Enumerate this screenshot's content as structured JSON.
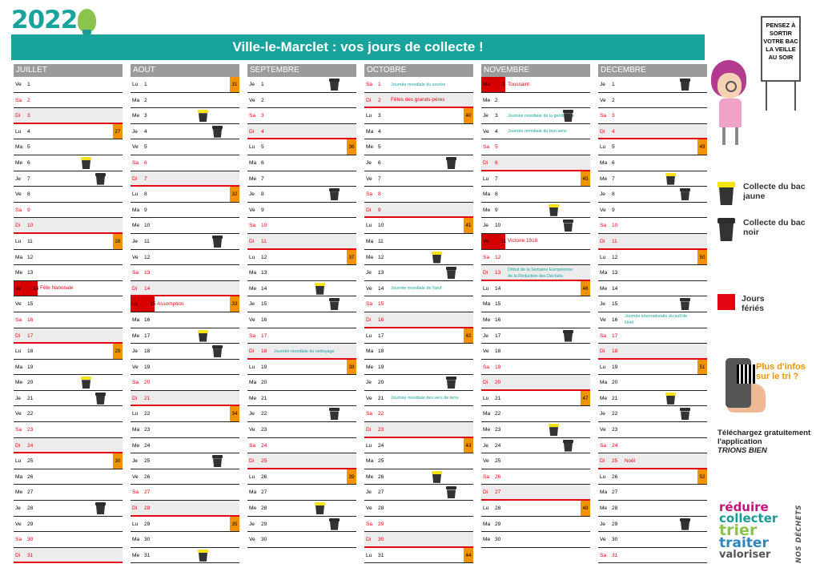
{
  "year_label": "2022",
  "title": "Ville-le-Marclet : vos jours de collecte !",
  "board_text": "PENSEZ À SORTIR VOTRE BAC LA VEILLE AU SOIR",
  "legend": {
    "yellow": "Collecte du bac jaune",
    "black": "Collecte du bac noir",
    "holiday": "Jours fériés",
    "bin_colors": {
      "yellow": "#f4e212",
      "black": "#2c2c2c",
      "holiday": "#e30613"
    }
  },
  "promo": {
    "more_info": "Plus d'infos sur le tri ?",
    "download": "Téléchargez gratuitement l'application",
    "app_name": "TRIONS BIEN"
  },
  "slogan": {
    "l1": "réduire",
    "l2": "collecter",
    "l3": "trier",
    "l4": "traiter",
    "l5": "valoriser",
    "vertical": "NOS DÉCHETS"
  },
  "months": [
    {
      "name": "JUILLET",
      "days": [
        {
          "d": 1,
          "w": "Ve"
        },
        {
          "d": 2,
          "w": "Sa"
        },
        {
          "d": 3,
          "w": "Di"
        },
        {
          "d": 4,
          "w": "Lu",
          "wk": "27"
        },
        {
          "d": 5,
          "w": "Ma"
        },
        {
          "d": 6,
          "w": "Me",
          "bin": "y"
        },
        {
          "d": 7,
          "w": "Je",
          "bin": "b"
        },
        {
          "d": 8,
          "w": "Ve"
        },
        {
          "d": 9,
          "w": "Sa"
        },
        {
          "d": 10,
          "w": "Di"
        },
        {
          "d": 11,
          "w": "Lu",
          "wk": "28"
        },
        {
          "d": 12,
          "w": "Ma"
        },
        {
          "d": 13,
          "w": "Me"
        },
        {
          "d": 14,
          "w": "Je",
          "hol": true,
          "ev": "Fête Nationale"
        },
        {
          "d": 15,
          "w": "Ve"
        },
        {
          "d": 16,
          "w": "Sa"
        },
        {
          "d": 17,
          "w": "Di"
        },
        {
          "d": 18,
          "w": "Lu",
          "wk": "29"
        },
        {
          "d": 19,
          "w": "Ma"
        },
        {
          "d": 20,
          "w": "Me",
          "bin": "y"
        },
        {
          "d": 21,
          "w": "Je",
          "bin": "b"
        },
        {
          "d": 22,
          "w": "Ve"
        },
        {
          "d": 23,
          "w": "Sa"
        },
        {
          "d": 24,
          "w": "Di"
        },
        {
          "d": 25,
          "w": "Lu",
          "wk": "30"
        },
        {
          "d": 26,
          "w": "Ma"
        },
        {
          "d": 27,
          "w": "Me"
        },
        {
          "d": 28,
          "w": "Je",
          "bin": "b"
        },
        {
          "d": 29,
          "w": "Ve"
        },
        {
          "d": 30,
          "w": "Sa"
        },
        {
          "d": 31,
          "w": "Di"
        }
      ]
    },
    {
      "name": "AOUT",
      "days": [
        {
          "d": 1,
          "w": "Lu",
          "wk": "31"
        },
        {
          "d": 2,
          "w": "Ma"
        },
        {
          "d": 3,
          "w": "Me",
          "bin": "y"
        },
        {
          "d": 4,
          "w": "Je",
          "bin": "b"
        },
        {
          "d": 5,
          "w": "Ve"
        },
        {
          "d": 6,
          "w": "Sa"
        },
        {
          "d": 7,
          "w": "Di"
        },
        {
          "d": 8,
          "w": "Lu",
          "wk": "32"
        },
        {
          "d": 9,
          "w": "Ma"
        },
        {
          "d": 10,
          "w": "Me"
        },
        {
          "d": 11,
          "w": "Je",
          "bin": "b"
        },
        {
          "d": 12,
          "w": "Ve"
        },
        {
          "d": 13,
          "w": "Sa"
        },
        {
          "d": 14,
          "w": "Di"
        },
        {
          "d": 15,
          "w": "Lu",
          "hol": true,
          "ev": "Assomption",
          "wk": "33"
        },
        {
          "d": 16,
          "w": "Ma"
        },
        {
          "d": 17,
          "w": "Me",
          "bin": "y"
        },
        {
          "d": 18,
          "w": "Je",
          "bin": "b"
        },
        {
          "d": 19,
          "w": "Ve"
        },
        {
          "d": 20,
          "w": "Sa"
        },
        {
          "d": 21,
          "w": "Di"
        },
        {
          "d": 22,
          "w": "Lu",
          "wk": "34"
        },
        {
          "d": 23,
          "w": "Ma"
        },
        {
          "d": 24,
          "w": "Me"
        },
        {
          "d": 25,
          "w": "Je",
          "bin": "b"
        },
        {
          "d": 26,
          "w": "Ve"
        },
        {
          "d": 27,
          "w": "Sa"
        },
        {
          "d": 28,
          "w": "Di"
        },
        {
          "d": 29,
          "w": "Lu",
          "wk": "35"
        },
        {
          "d": 30,
          "w": "Ma"
        },
        {
          "d": 31,
          "w": "Me",
          "bin": "y"
        }
      ]
    },
    {
      "name": "SEPTEMBRE",
      "days": [
        {
          "d": 1,
          "w": "Je",
          "bin": "b"
        },
        {
          "d": 2,
          "w": "Ve"
        },
        {
          "d": 3,
          "w": "Sa"
        },
        {
          "d": 4,
          "w": "Di"
        },
        {
          "d": 5,
          "w": "Lu",
          "wk": "36"
        },
        {
          "d": 6,
          "w": "Ma"
        },
        {
          "d": 7,
          "w": "Me"
        },
        {
          "d": 8,
          "w": "Je",
          "bin": "b"
        },
        {
          "d": 9,
          "w": "Ve"
        },
        {
          "d": 10,
          "w": "Sa"
        },
        {
          "d": 11,
          "w": "Di"
        },
        {
          "d": 12,
          "w": "Lu",
          "wk": "37"
        },
        {
          "d": 13,
          "w": "Ma"
        },
        {
          "d": 14,
          "w": "Me",
          "bin": "y"
        },
        {
          "d": 15,
          "w": "Je",
          "bin": "b"
        },
        {
          "d": 16,
          "w": "Ve"
        },
        {
          "d": 17,
          "w": "Sa"
        },
        {
          "d": 18,
          "w": "Di",
          "ev": "Journée mondiale du nettoyage"
        },
        {
          "d": 19,
          "w": "Lu",
          "wk": "38"
        },
        {
          "d": 20,
          "w": "Ma"
        },
        {
          "d": 21,
          "w": "Me"
        },
        {
          "d": 22,
          "w": "Je",
          "bin": "b"
        },
        {
          "d": 23,
          "w": "Ve"
        },
        {
          "d": 24,
          "w": "Sa"
        },
        {
          "d": 25,
          "w": "Di"
        },
        {
          "d": 26,
          "w": "Lu",
          "wk": "39"
        },
        {
          "d": 27,
          "w": "Ma"
        },
        {
          "d": 28,
          "w": "Me",
          "bin": "y"
        },
        {
          "d": 29,
          "w": "Je",
          "bin": "b"
        },
        {
          "d": 30,
          "w": "Ve"
        }
      ]
    },
    {
      "name": "OCTOBRE",
      "days": [
        {
          "d": 1,
          "w": "Sa",
          "ev": "Journée mondiale du sourire"
        },
        {
          "d": 2,
          "w": "Di",
          "ev": "Fêtes des grands-pères",
          "evred": true
        },
        {
          "d": 3,
          "w": "Lu",
          "wk": "40"
        },
        {
          "d": 4,
          "w": "Ma"
        },
        {
          "d": 5,
          "w": "Me"
        },
        {
          "d": 6,
          "w": "Je",
          "bin": "b"
        },
        {
          "d": 7,
          "w": "Ve"
        },
        {
          "d": 8,
          "w": "Sa"
        },
        {
          "d": 9,
          "w": "Di"
        },
        {
          "d": 10,
          "w": "Lu",
          "wk": "41"
        },
        {
          "d": 11,
          "w": "Ma"
        },
        {
          "d": 12,
          "w": "Me",
          "bin": "y"
        },
        {
          "d": 13,
          "w": "Je",
          "bin": "b"
        },
        {
          "d": 14,
          "w": "Ve",
          "ev": "Journée mondiale de l'œuf"
        },
        {
          "d": 15,
          "w": "Sa"
        },
        {
          "d": 16,
          "w": "Di"
        },
        {
          "d": 17,
          "w": "Lu",
          "wk": "42"
        },
        {
          "d": 18,
          "w": "Ma"
        },
        {
          "d": 19,
          "w": "Me"
        },
        {
          "d": 20,
          "w": "Je",
          "bin": "b"
        },
        {
          "d": 21,
          "w": "Ve",
          "ev": "Journée mondiale des vers de terre"
        },
        {
          "d": 22,
          "w": "Sa"
        },
        {
          "d": 23,
          "w": "Di"
        },
        {
          "d": 24,
          "w": "Lu",
          "wk": "43"
        },
        {
          "d": 25,
          "w": "Ma"
        },
        {
          "d": 26,
          "w": "Me",
          "bin": "y"
        },
        {
          "d": 27,
          "w": "Je",
          "bin": "b"
        },
        {
          "d": 28,
          "w": "Ve"
        },
        {
          "d": 29,
          "w": "Sa"
        },
        {
          "d": 30,
          "w": "Di"
        },
        {
          "d": 31,
          "w": "Lu",
          "wk": "44"
        }
      ]
    },
    {
      "name": "NOVEMBRE",
      "days": [
        {
          "d": 1,
          "w": "Ma",
          "hol": true,
          "ev": "Toussaint"
        },
        {
          "d": 2,
          "w": "Me"
        },
        {
          "d": 3,
          "w": "Je",
          "bin": "b",
          "ev": "Journée mondiale de la gentillesse"
        },
        {
          "d": 4,
          "w": "Ve",
          "ev": "Journée mondiale du bon sens"
        },
        {
          "d": 5,
          "w": "Sa"
        },
        {
          "d": 6,
          "w": "Di"
        },
        {
          "d": 7,
          "w": "Lu",
          "wk": "45"
        },
        {
          "d": 8,
          "w": "Ma"
        },
        {
          "d": 9,
          "w": "Me",
          "bin": "y"
        },
        {
          "d": 10,
          "w": "Je",
          "bin": "b"
        },
        {
          "d": 11,
          "w": "Ve",
          "hol": true,
          "ev": "Victoire 1918"
        },
        {
          "d": 12,
          "w": "Sa"
        },
        {
          "d": 13,
          "w": "Di",
          "ev": "Début de la Semaine Européenne de la Réduction des Déchets"
        },
        {
          "d": 14,
          "w": "Lu",
          "wk": "46"
        },
        {
          "d": 15,
          "w": "Ma"
        },
        {
          "d": 16,
          "w": "Me"
        },
        {
          "d": 17,
          "w": "Je",
          "bin": "b"
        },
        {
          "d": 18,
          "w": "Ve"
        },
        {
          "d": 19,
          "w": "Sa"
        },
        {
          "d": 20,
          "w": "Di"
        },
        {
          "d": 21,
          "w": "Lu",
          "wk": "47"
        },
        {
          "d": 22,
          "w": "Ma"
        },
        {
          "d": 23,
          "w": "Me",
          "bin": "y"
        },
        {
          "d": 24,
          "w": "Je",
          "bin": "b"
        },
        {
          "d": 25,
          "w": "Ve"
        },
        {
          "d": 26,
          "w": "Sa"
        },
        {
          "d": 27,
          "w": "Di"
        },
        {
          "d": 28,
          "w": "Lu",
          "wk": "48"
        },
        {
          "d": 29,
          "w": "Ma"
        },
        {
          "d": 30,
          "w": "Me"
        }
      ]
    },
    {
      "name": "DECEMBRE",
      "days": [
        {
          "d": 1,
          "w": "Je",
          "bin": "b"
        },
        {
          "d": 2,
          "w": "Ve"
        },
        {
          "d": 3,
          "w": "Sa"
        },
        {
          "d": 4,
          "w": "Di"
        },
        {
          "d": 5,
          "w": "Lu",
          "wk": "49"
        },
        {
          "d": 6,
          "w": "Ma"
        },
        {
          "d": 7,
          "w": "Me",
          "bin": "y"
        },
        {
          "d": 8,
          "w": "Je",
          "bin": "b"
        },
        {
          "d": 9,
          "w": "Ve"
        },
        {
          "d": 10,
          "w": "Sa"
        },
        {
          "d": 11,
          "w": "Di"
        },
        {
          "d": 12,
          "w": "Lu",
          "wk": "50"
        },
        {
          "d": 13,
          "w": "Ma"
        },
        {
          "d": 14,
          "w": "Me"
        },
        {
          "d": 15,
          "w": "Je",
          "bin": "b"
        },
        {
          "d": 16,
          "w": "Ve",
          "ev": "Journée internationale du pull de Noël"
        },
        {
          "d": 17,
          "w": "Sa"
        },
        {
          "d": 18,
          "w": "Di"
        },
        {
          "d": 19,
          "w": "Lu",
          "wk": "51"
        },
        {
          "d": 20,
          "w": "Ma"
        },
        {
          "d": 21,
          "w": "Me",
          "bin": "y"
        },
        {
          "d": 22,
          "w": "Je",
          "bin": "b"
        },
        {
          "d": 23,
          "w": "Ve"
        },
        {
          "d": 24,
          "w": "Sa"
        },
        {
          "d": 25,
          "w": "Di",
          "ev": "Noël",
          "evred": true
        },
        {
          "d": 26,
          "w": "Lu",
          "wk": "52"
        },
        {
          "d": 27,
          "w": "Ma"
        },
        {
          "d": 28,
          "w": "Me"
        },
        {
          "d": 29,
          "w": "Je",
          "bin": "b"
        },
        {
          "d": 30,
          "w": "Ve"
        },
        {
          "d": 31,
          "w": "Sa"
        }
      ]
    }
  ]
}
